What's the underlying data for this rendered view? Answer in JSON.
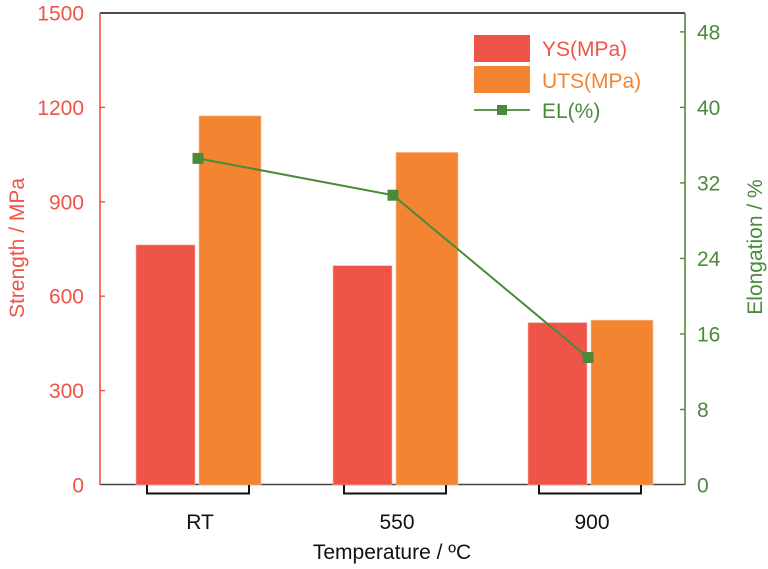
{
  "chart_data": {
    "type": "bar",
    "title": "",
    "categories": [
      "RT",
      "550",
      "900"
    ],
    "xlabel": "Temperature / ºC",
    "series": [
      {
        "name": "YS(MPa)",
        "kind": "bar",
        "axis": "left",
        "color": "#EF5448",
        "values": [
          763,
          697,
          516
        ]
      },
      {
        "name": "UTS(MPa)",
        "kind": "bar",
        "axis": "left",
        "color": "#F28432",
        "values": [
          1173,
          1057,
          524
        ]
      },
      {
        "name": "EL(%)",
        "kind": "line",
        "marker": "square",
        "axis": "right",
        "color": "#4A8A3A",
        "values": [
          34.6,
          30.7,
          13.5
        ]
      }
    ],
    "y_left": {
      "label": "Strength / MPa",
      "color": "#EF5448",
      "ylim": [
        0,
        1500
      ],
      "ticks": [
        0,
        300,
        600,
        900,
        1200,
        1500
      ]
    },
    "y_right": {
      "label": "Elongation / %",
      "color": "#4A8A3A",
      "ylim": [
        0,
        50
      ],
      "ticks": [
        0,
        8,
        16,
        24,
        32,
        40,
        48
      ]
    },
    "grid": false,
    "legend": {
      "position": "top-right",
      "entries": [
        "YS(MPa)",
        "UTS(MPa)",
        "EL(%)"
      ]
    }
  }
}
